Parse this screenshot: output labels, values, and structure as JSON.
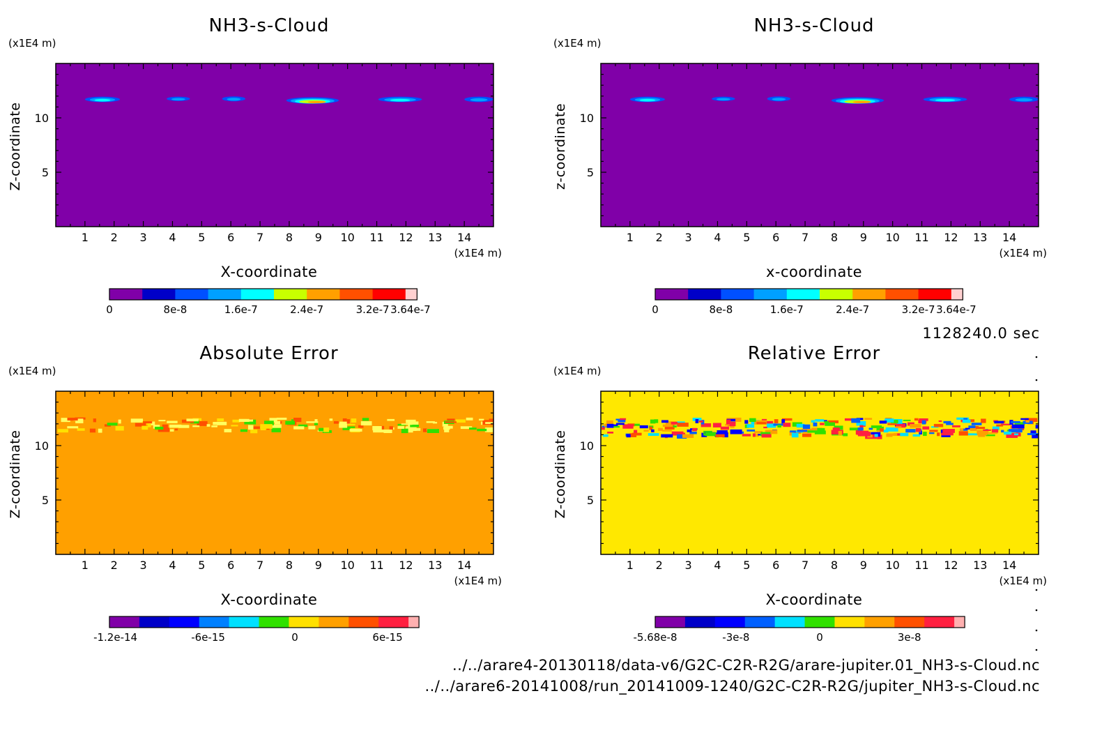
{
  "time_label": "1128240.0 sec",
  "files": [
    "../../arare4-20130118/data-v6/G2C-C2R-R2G/arare-jupiter.01_NH3-s-Cloud.nc",
    "../../arare6-20141008/run_20141009-1240/G2C-C2R-R2G/jupiter_NH3-s-Cloud.nc"
  ],
  "chart_data": [
    {
      "type": "heatmap",
      "title": "NH3-s-Cloud",
      "xlabel": "X-coordinate",
      "ylabel": "Z-coordinate",
      "x_unit": "(x1E4 m)",
      "y_unit": "(x1E4 m)",
      "xlim": [
        0,
        15
      ],
      "ylim": [
        0,
        15
      ],
      "xticks": [
        1,
        2,
        3,
        4,
        5,
        6,
        7,
        8,
        9,
        10,
        11,
        12,
        13,
        14
      ],
      "yticks": [
        5,
        10
      ],
      "background_color": "#8000a8",
      "colorbar": {
        "colors": [
          "#8000a8",
          "#0000c8",
          "#0050ff",
          "#00a0ff",
          "#00ffff",
          "#c8ff00",
          "#ffa000",
          "#ff5000",
          "#ff0000",
          "#ffd0d0"
        ],
        "labels": [
          "0",
          "8e-8",
          "1.6e-7",
          "2.4e-7",
          "3.2e-7",
          "3.64e-7"
        ],
        "label_positions": [
          0,
          2,
          4,
          6,
          8,
          9.15
        ]
      },
      "features": [
        {
          "x": 1.6,
          "z": 11.7,
          "w": 1.2,
          "h": 0.5,
          "layers": [
            "#0050ff",
            "#00a0ff",
            "#00ffff"
          ]
        },
        {
          "x": 4.2,
          "z": 11.75,
          "w": 0.8,
          "h": 0.4,
          "layers": [
            "#0050ff",
            "#00a0ff"
          ]
        },
        {
          "x": 6.1,
          "z": 11.75,
          "w": 0.8,
          "h": 0.45,
          "layers": [
            "#0050ff",
            "#00a0ff"
          ]
        },
        {
          "x": 8.8,
          "z": 11.6,
          "w": 1.8,
          "h": 0.6,
          "layers": [
            "#0050ff",
            "#00a0ff",
            "#00ffff",
            "#c8ff00",
            "#ffa000"
          ]
        },
        {
          "x": 11.8,
          "z": 11.7,
          "w": 1.5,
          "h": 0.5,
          "layers": [
            "#0050ff",
            "#00a0ff",
            "#00ffff"
          ]
        },
        {
          "x": 14.5,
          "z": 11.7,
          "w": 1.0,
          "h": 0.5,
          "layers": [
            "#0050ff",
            "#00a0ff"
          ]
        }
      ]
    },
    {
      "type": "heatmap",
      "title": "NH3-s-Cloud",
      "xlabel": "x-coordinate",
      "ylabel": "z-coordinate",
      "x_unit": "(x1E4 m)",
      "y_unit": "(x1E4 m)",
      "xlim": [
        0,
        15
      ],
      "ylim": [
        0,
        15
      ],
      "xticks": [
        1,
        2,
        3,
        4,
        5,
        6,
        7,
        8,
        9,
        10,
        11,
        12,
        13,
        14
      ],
      "yticks": [
        5,
        10
      ],
      "background_color": "#8000a8",
      "colorbar": {
        "colors": [
          "#8000a8",
          "#0000c8",
          "#0050ff",
          "#00a0ff",
          "#00ffff",
          "#c8ff00",
          "#ffa000",
          "#ff5000",
          "#ff0000",
          "#ffd0d0"
        ],
        "labels": [
          "0",
          "8e-8",
          "1.6e-7",
          "2.4e-7",
          "3.2e-7",
          "3.64e-7"
        ],
        "label_positions": [
          0,
          2,
          4,
          6,
          8,
          9.15
        ]
      },
      "features": [
        {
          "x": 1.6,
          "z": 11.7,
          "w": 1.2,
          "h": 0.5,
          "layers": [
            "#0050ff",
            "#00a0ff",
            "#00ffff"
          ]
        },
        {
          "x": 4.2,
          "z": 11.75,
          "w": 0.8,
          "h": 0.4,
          "layers": [
            "#0050ff",
            "#00a0ff"
          ]
        },
        {
          "x": 6.1,
          "z": 11.75,
          "w": 0.8,
          "h": 0.45,
          "layers": [
            "#0050ff",
            "#00a0ff"
          ]
        },
        {
          "x": 8.8,
          "z": 11.6,
          "w": 1.8,
          "h": 0.6,
          "layers": [
            "#0050ff",
            "#00a0ff",
            "#00ffff",
            "#c8ff00",
            "#ffa000"
          ]
        },
        {
          "x": 11.8,
          "z": 11.7,
          "w": 1.5,
          "h": 0.5,
          "layers": [
            "#0050ff",
            "#00a0ff",
            "#00ffff"
          ]
        },
        {
          "x": 14.5,
          "z": 11.7,
          "w": 1.0,
          "h": 0.5,
          "layers": [
            "#0050ff",
            "#00a0ff"
          ]
        }
      ]
    },
    {
      "type": "heatmap",
      "title": "Absolute Error",
      "xlabel": "X-coordinate",
      "ylabel": "Z-coordinate",
      "x_unit": "(x1E4 m)",
      "y_unit": "(x1E4 m)",
      "xlim": [
        0,
        15
      ],
      "ylim": [
        0,
        15
      ],
      "xticks": [
        1,
        2,
        3,
        4,
        5,
        6,
        7,
        8,
        9,
        10,
        11,
        12,
        13,
        14
      ],
      "yticks": [
        5,
        10
      ],
      "background_color": "#ffa000",
      "colorbar": {
        "colors": [
          "#8000a8",
          "#0000c8",
          "#0000ff",
          "#0080ff",
          "#00e0ff",
          "#30e000",
          "#ffe000",
          "#ffa000",
          "#ff5000",
          "#ff2040",
          "#ffb0b0"
        ],
        "labels": [
          "-1.2e-14",
          "-6e-15",
          "0",
          "6e-15"
        ],
        "label_positions": [
          0.2,
          3.3,
          6.2,
          9.3
        ]
      },
      "noise_band": {
        "z_min": 11.4,
        "z_max": 12.6,
        "colors": [
          "#ffff60",
          "#ffff60",
          "#ffff60",
          "#30e000",
          "#ff5000",
          "#ffe000"
        ],
        "count": 140
      }
    },
    {
      "type": "heatmap",
      "title": "Relative Error",
      "xlabel": "X-coordinate",
      "ylabel": "Z-coordinate",
      "x_unit": "(x1E4 m)",
      "y_unit": "(x1E4 m)",
      "xlim": [
        0,
        15
      ],
      "ylim": [
        0,
        15
      ],
      "xticks": [
        1,
        2,
        3,
        4,
        5,
        6,
        7,
        8,
        9,
        10,
        11,
        12,
        13,
        14
      ],
      "yticks": [
        5,
        10
      ],
      "background_color": "#ffe800",
      "colorbar": {
        "colors": [
          "#8000a8",
          "#0000c8",
          "#0000ff",
          "#0060ff",
          "#00e0ff",
          "#30e000",
          "#ffe000",
          "#ffa000",
          "#ff5000",
          "#ff2040",
          "#ffb0b0"
        ],
        "labels": [
          "-5.68e-8",
          "-3e-8",
          "0",
          "3e-8"
        ],
        "label_positions": [
          0,
          2.7,
          5.5,
          8.5
        ]
      },
      "noise_band": {
        "z_min": 11.0,
        "z_max": 12.6,
        "colors": [
          "#0060ff",
          "#00e0ff",
          "#30e000",
          "#ff2040",
          "#ff5000",
          "#0000ff",
          "#ffa000"
        ],
        "count": 260
      }
    }
  ]
}
